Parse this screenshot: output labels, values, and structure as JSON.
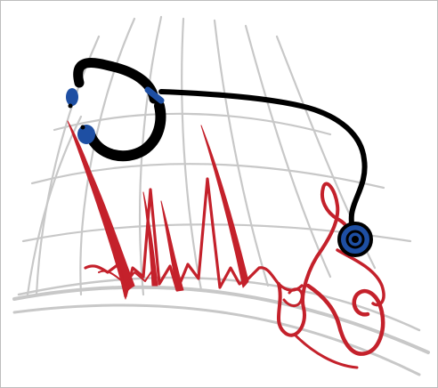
{
  "logo": {
    "icon": "stethoscope-heartbeat-logo-icon",
    "colors": {
      "stethoscope": "#000000",
      "earpiece": "#1e4fa3",
      "heartbeat": "#c4212b",
      "grid": "#c8c8c8",
      "background": "#ffffff"
    }
  }
}
